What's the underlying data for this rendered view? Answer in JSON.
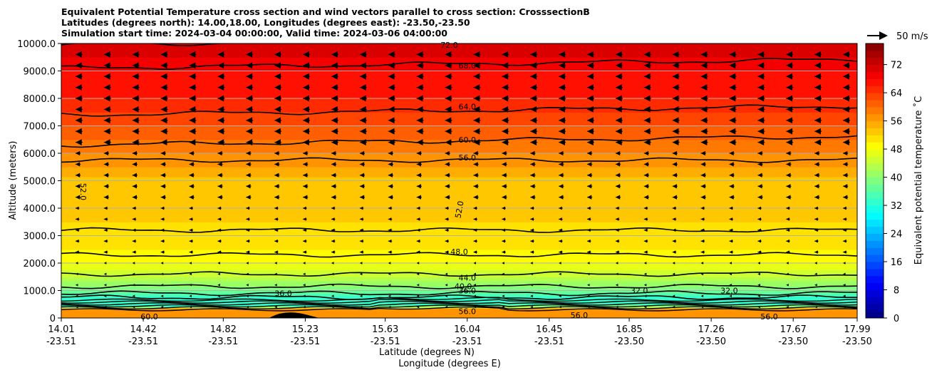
{
  "chart_data": {
    "type": "heatmap",
    "title_lines": [
      "Equivalent Potential Temperature cross section and wind vectors parallel to cross section: CrosssectionB",
      "Latitudes (degrees north): 14.00,18.00, Longitudes (degrees east): -23.50,-23.50",
      "Simulation start time: 2024-03-04 00:00:00, Valid time: 2024-03-06 04:00:00"
    ],
    "ylabel": "Altitude (meters)",
    "xlabel_lat": "Latitude (degrees N)",
    "xlabel_lon": "Longitude (degrees E)",
    "ylim": [
      0,
      10000
    ],
    "y_ticks": [
      "0",
      "1000.0",
      "2000.0",
      "3000.0",
      "4000.0",
      "5000.0",
      "6000.0",
      "7000.0",
      "8000.0",
      "9000.0",
      "10000.0"
    ],
    "y_tick_values": [
      0,
      1000,
      2000,
      3000,
      4000,
      5000,
      6000,
      7000,
      8000,
      9000,
      10000
    ],
    "x_ticks_lat": [
      "14.01",
      "14.42",
      "14.82",
      "15.23",
      "15.63",
      "16.04",
      "16.45",
      "16.85",
      "17.26",
      "17.67",
      "17.99"
    ],
    "x_ticks_lon": [
      "-23.51",
      "-23.51",
      "-23.51",
      "-23.51",
      "-23.51",
      "-23.51",
      "-23.51",
      "-23.50",
      "-23.50",
      "-23.50",
      "-23.50"
    ],
    "x_tick_values": [
      14.01,
      14.42,
      14.82,
      15.23,
      15.63,
      16.04,
      16.45,
      16.85,
      17.26,
      17.67,
      17.99
    ],
    "xlim": [
      14.01,
      17.99
    ],
    "colorbar_label": "Equivalent potential temperature ˚C",
    "colorbar_ticks": [
      "0",
      "8",
      "16",
      "24",
      "32",
      "40",
      "48",
      "56",
      "64",
      "72"
    ],
    "colorbar_tick_values": [
      0,
      8,
      16,
      24,
      32,
      40,
      48,
      56,
      64,
      72
    ],
    "colorbar_range": [
      0,
      78
    ],
    "quiver_key_label": "50 m/s",
    "theta_e_profile": {
      "altitude_m": [
        0,
        300,
        500,
        700,
        1000,
        1500,
        2000,
        2500,
        3000,
        3500,
        4000,
        5000,
        5500,
        6000,
        6500,
        7000,
        7500,
        8000,
        9000,
        10000
      ],
      "theta_e_c": [
        56,
        50,
        36,
        32,
        38,
        44,
        48,
        50,
        51,
        52,
        52,
        53,
        56,
        58,
        60,
        62,
        64,
        66,
        68,
        72
      ]
    },
    "contours": [
      {
        "level": "72.0",
        "altitude_m": 9950
      },
      {
        "level": "68.0",
        "altitude_m": 9100
      },
      {
        "level": "64.0",
        "altitude_m": 7400
      },
      {
        "level": "60.0",
        "altitude_m": 6300
      },
      {
        "level": "56.0",
        "altitude_m": 5750
      },
      {
        "level": "52.0",
        "altitude_m": 3200
      },
      {
        "level": "48.0",
        "altitude_m": 2300
      },
      {
        "level": "44.0",
        "altitude_m": 1600
      },
      {
        "level": "40.0",
        "altitude_m": 1150
      },
      {
        "level": "36.0",
        "altitude_m": 900
      },
      {
        "level": "32.0",
        "altitude_m": 750
      }
    ],
    "contour_labels": [
      {
        "text": "72.0",
        "lat": 15.95,
        "alt": 9950
      },
      {
        "text": "68.0",
        "lat": 16.04,
        "alt": 9200
      },
      {
        "text": "64.0",
        "lat": 16.04,
        "alt": 7700
      },
      {
        "text": "60.0",
        "lat": 16.04,
        "alt": 6500
      },
      {
        "text": "56.0",
        "lat": 16.04,
        "alt": 5850
      },
      {
        "text": "52.0",
        "lat": 14.12,
        "alt": 4600,
        "rotate": 90
      },
      {
        "text": "52.0",
        "lat": 16.0,
        "alt": 3950,
        "rotate": -80
      },
      {
        "text": "48.0",
        "lat": 16.0,
        "alt": 2420
      },
      {
        "text": "44.0",
        "lat": 16.04,
        "alt": 1470
      },
      {
        "text": "40.0",
        "lat": 16.02,
        "alt": 1160
      },
      {
        "text": "36.0",
        "lat": 16.04,
        "alt": 1000
      },
      {
        "text": "36.0",
        "lat": 15.12,
        "alt": 900
      },
      {
        "text": "32.0",
        "lat": 16.9,
        "alt": 1000
      },
      {
        "text": "32.0",
        "lat": 17.35,
        "alt": 1000
      },
      {
        "text": "56.0",
        "lat": 16.04,
        "alt": 250
      },
      {
        "text": "60.0",
        "lat": 14.45,
        "alt": 50
      },
      {
        "text": "56.0",
        "lat": 17.55,
        "alt": 50
      },
      {
        "text": "56.0",
        "lat": 16.6,
        "alt": 100
      }
    ],
    "wind_vectors_direction": "westward (parallel to cross section)",
    "wind_max_m_per_s": 50
  }
}
